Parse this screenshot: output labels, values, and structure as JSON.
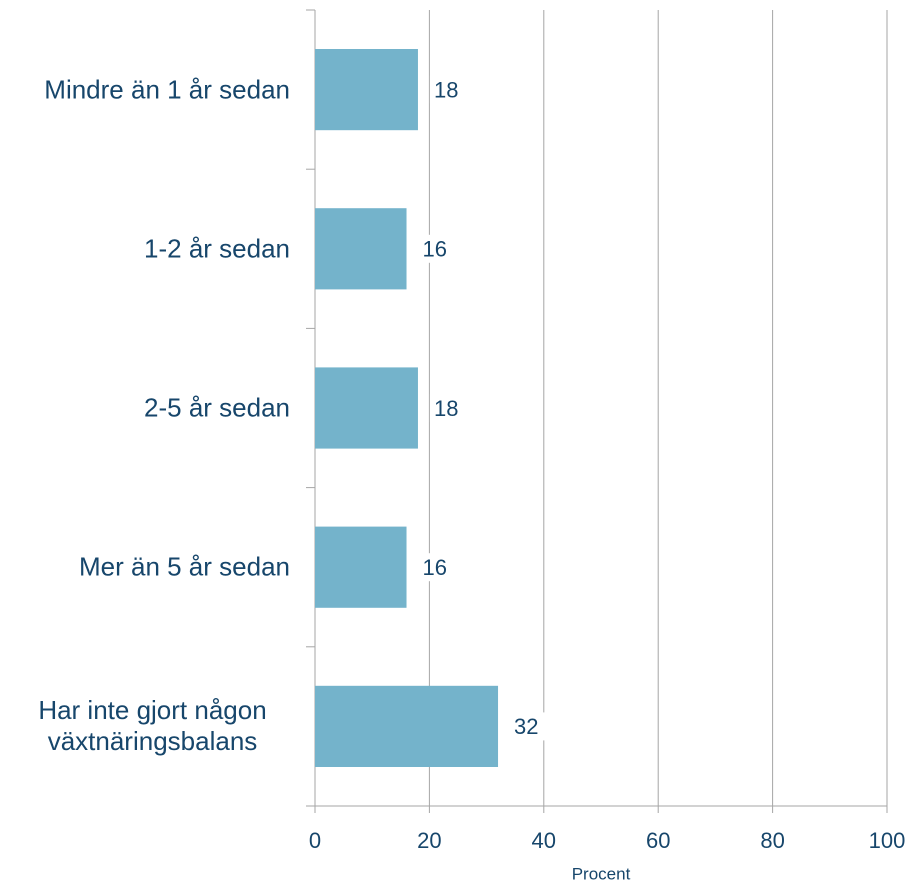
{
  "chart_data": {
    "type": "bar",
    "orientation": "horizontal",
    "categories": [
      "Mindre än 1 år sedan",
      "1-2 år sedan",
      "2-5 år sedan",
      "Mer än 5 år sedan",
      "Har inte gjort någon växtnäringsbalans"
    ],
    "values": [
      18,
      16,
      18,
      16,
      32
    ],
    "color": "#74b3cb",
    "xlabel": "Procent",
    "xlim": [
      0,
      100
    ],
    "xticks": [
      0,
      20,
      40,
      60,
      80,
      100
    ],
    "grid": true
  }
}
